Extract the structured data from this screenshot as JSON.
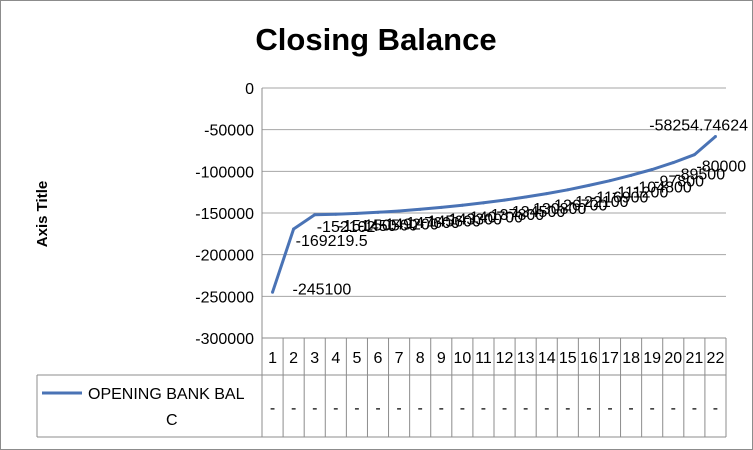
{
  "chart_data": {
    "type": "line",
    "title": "Closing Balance",
    "ylabel": "Axis Title",
    "xlabel": "",
    "ylim": [
      -300000,
      0
    ],
    "yticks": [
      0,
      -50000,
      -100000,
      -150000,
      -200000,
      -250000,
      -300000
    ],
    "ytick_labels": [
      "0",
      "-50000",
      "-100000",
      "-150000",
      "-200000",
      "-250000",
      "-300000"
    ],
    "categories": [
      "1",
      "2",
      "3",
      "4",
      "5",
      "6",
      "7",
      "8",
      "9",
      "10",
      "11",
      "12",
      "13",
      "14",
      "15",
      "16",
      "17",
      "18",
      "19",
      "20",
      "21",
      "22"
    ],
    "series": [
      {
        "name": "OPENING BANK BAL C",
        "color": "#4a73b5",
        "values": [
          -245100,
          -169219.5,
          -152102,
          -151450,
          -150500,
          -149200,
          -147600,
          -145600,
          -143300,
          -140700,
          -137800,
          -134500,
          -130800,
          -126700,
          -122100,
          -116900,
          -111200,
          -104800,
          -97800,
          -89500,
          -80000,
          -58254.74624
        ]
      }
    ],
    "data_labels": [
      {
        "index": 0,
        "text": "-245100"
      },
      {
        "index": 1,
        "text": "-169219.5"
      },
      {
        "index": 2,
        "text": "-152102"
      },
      {
        "index": 3,
        "text": "-151450"
      },
      {
        "index": 4,
        "text": "-150500"
      },
      {
        "index": 5,
        "text": "-149200"
      },
      {
        "index": 6,
        "text": "-147600"
      },
      {
        "index": 7,
        "text": "-145600"
      },
      {
        "index": 8,
        "text": "-143300"
      },
      {
        "index": 9,
        "text": "-140700"
      },
      {
        "index": 10,
        "text": "-137800"
      },
      {
        "index": 11,
        "text": "-134500"
      },
      {
        "index": 12,
        "text": "-130800"
      },
      {
        "index": 13,
        "text": "-126700"
      },
      {
        "index": 14,
        "text": "-122100"
      },
      {
        "index": 15,
        "text": "-116900"
      },
      {
        "index": 16,
        "text": "-111200"
      },
      {
        "index": 17,
        "text": "-104800"
      },
      {
        "index": 18,
        "text": "-97800"
      },
      {
        "index": 19,
        "text": "-89500"
      },
      {
        "index": 20,
        "text": "-80000"
      },
      {
        "index": 21,
        "text": "-58254.74624"
      }
    ],
    "table_cells": [
      "-",
      "-",
      "-",
      "-",
      "-",
      "-",
      "-",
      "-",
      "-",
      "-",
      "-",
      "-",
      "-",
      "-",
      "-",
      "-",
      "-",
      "-",
      "-",
      "-",
      "-",
      "-"
    ],
    "legend_placement": "data-table-left"
  }
}
